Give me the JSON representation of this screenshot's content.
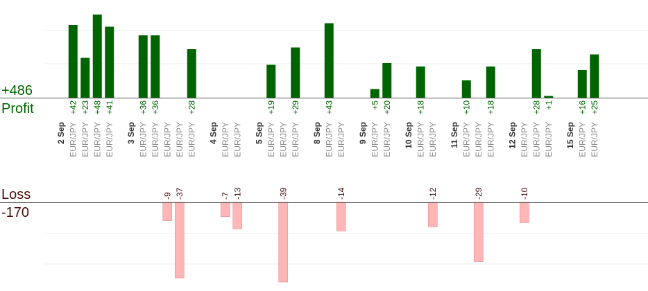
{
  "chart_data": {
    "type": "bar",
    "profit_total_label": "+486",
    "profit_title": "Profit",
    "loss_title": "Loss",
    "loss_total_label": "-170",
    "profit_color": "#006400",
    "loss_color": "#ffb6b6",
    "profit_ylim": [
      0,
      56
    ],
    "loss_ylim": [
      0,
      45
    ],
    "grid": true,
    "categories": [
      {
        "date": "2 Sep",
        "trades": [
          {
            "symbol": "EUR/JPY",
            "profit": 42,
            "loss": null
          },
          {
            "symbol": "EUR/JPY",
            "profit": 23,
            "loss": null
          },
          {
            "symbol": "EUR/JPY",
            "profit": 48,
            "loss": null
          },
          {
            "symbol": "EUR/JPY",
            "profit": 41,
            "loss": null
          }
        ]
      },
      {
        "date": "3 Sep",
        "trades": [
          {
            "symbol": "EUR/JPY",
            "profit": 36,
            "loss": null
          },
          {
            "symbol": "EUR/JPY",
            "profit": 36,
            "loss": null
          },
          {
            "symbol": "EUR/JPY",
            "profit": null,
            "loss": -9
          },
          {
            "symbol": "EUR/JPY",
            "profit": null,
            "loss": -37
          },
          {
            "symbol": "EUR/JPY",
            "profit": 28,
            "loss": null
          }
        ]
      },
      {
        "date": "4 Sep",
        "trades": [
          {
            "symbol": "EUR/JPY",
            "profit": null,
            "loss": -7
          },
          {
            "symbol": "EUR/JPY",
            "profit": null,
            "loss": -13
          }
        ]
      },
      {
        "date": "5 Sep",
        "trades": [
          {
            "symbol": "EUR/JPY",
            "profit": 19,
            "loss": null
          },
          {
            "symbol": "EUR/JPY",
            "profit": null,
            "loss": -39
          },
          {
            "symbol": "EUR/JPY",
            "profit": 29,
            "loss": null
          }
        ]
      },
      {
        "date": "8 Sep",
        "trades": [
          {
            "symbol": "EUR/JPY",
            "profit": 43,
            "loss": null
          },
          {
            "symbol": "EUR/JPY",
            "profit": null,
            "loss": -14
          }
        ]
      },
      {
        "date": "9 Sep",
        "trades": [
          {
            "symbol": "EUR/JPY",
            "profit": 5,
            "loss": null
          },
          {
            "symbol": "EUR/JPY",
            "profit": 20,
            "loss": null
          }
        ]
      },
      {
        "date": "10 Sep",
        "trades": [
          {
            "symbol": "EUR/JPY",
            "profit": 18,
            "loss": null
          },
          {
            "symbol": "EUR/JPY",
            "profit": null,
            "loss": -12
          }
        ]
      },
      {
        "date": "11 Sep",
        "trades": [
          {
            "symbol": "EUR/JPY",
            "profit": 10,
            "loss": null
          },
          {
            "symbol": "EUR/JPY",
            "profit": null,
            "loss": -29
          },
          {
            "symbol": "EUR/JPY",
            "profit": 18,
            "loss": null
          }
        ]
      },
      {
        "date": "12 Sep",
        "trades": [
          {
            "symbol": "EUR/JPY",
            "profit": null,
            "loss": -10
          },
          {
            "symbol": "EUR/JPY",
            "profit": 28,
            "loss": null
          },
          {
            "symbol": "EUR/JPY",
            "profit": 1,
            "loss": null
          }
        ]
      },
      {
        "date": "15 Sep",
        "trades": [
          {
            "symbol": "EUR/JPY",
            "profit": 16,
            "loss": null
          },
          {
            "symbol": "EUR/JPY",
            "profit": 25,
            "loss": null
          }
        ]
      }
    ]
  }
}
